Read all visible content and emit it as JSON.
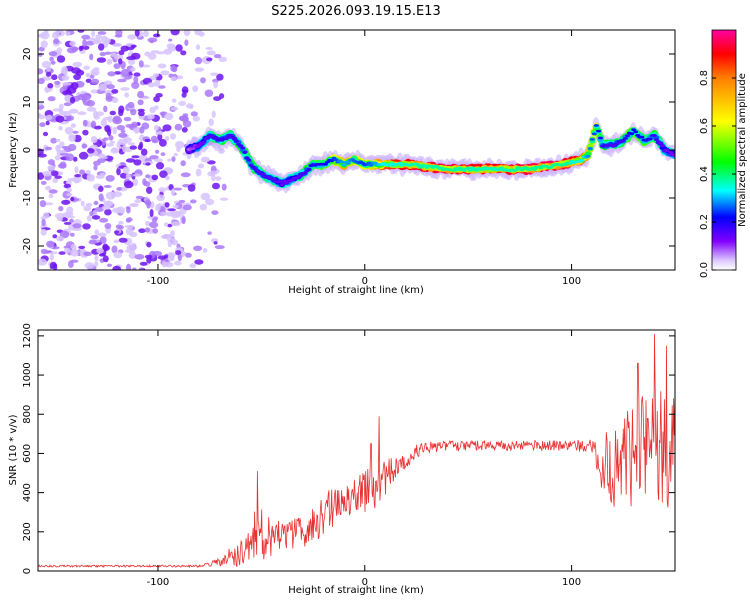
{
  "title": "S225.2026.093.19.15.E13",
  "chart_data": [
    {
      "type": "heatmap",
      "xlabel": "Height of straight line (km)",
      "ylabel": "Frequency (Hz)",
      "xlim": [
        -158,
        150
      ],
      "ylim": [
        -25,
        25
      ],
      "xticks": [
        -100,
        0,
        100
      ],
      "yticks": [
        -20,
        -10,
        0,
        10,
        20
      ],
      "ridge": {
        "x": [
          -85,
          -80,
          -75,
          -70,
          -65,
          -60,
          -55,
          -50,
          -45,
          -40,
          -35,
          -30,
          -25,
          -20,
          -15,
          -10,
          -5,
          0,
          10,
          20,
          40,
          60,
          80,
          95,
          105,
          108,
          112,
          115,
          120,
          125,
          130,
          135,
          140,
          145,
          150
        ],
        "frequency": [
          0,
          1,
          3,
          2,
          3,
          1,
          -3,
          -5,
          -6,
          -7,
          -6,
          -5,
          -3,
          -3,
          -2,
          -3,
          -2,
          -3,
          -3,
          -3,
          -4,
          -4,
          -4,
          -3,
          -2,
          -1,
          5,
          1,
          1,
          2,
          4,
          2,
          3,
          0,
          -1
        ],
        "amplitude": [
          0.2,
          0.3,
          0.4,
          0.45,
          0.4,
          0.45,
          0.45,
          0.4,
          0.4,
          0.35,
          0.35,
          0.4,
          0.5,
          0.5,
          0.6,
          0.75,
          0.65,
          0.6,
          0.85,
          0.9,
          0.95,
          0.9,
          0.95,
          0.95,
          0.85,
          0.7,
          0.6,
          0.45,
          0.4,
          0.45,
          0.55,
          0.5,
          0.45,
          0.35,
          0.3
        ]
      },
      "noise_region": [
        -158,
        -75
      ],
      "colorbar": {
        "label": "Normalized spectral amplitude",
        "range": [
          0,
          1
        ],
        "ticks": [
          "0.0",
          "0.2",
          "0.4",
          "0.6",
          "0.8"
        ],
        "tick_values": [
          0.0,
          0.2,
          0.4,
          0.6,
          0.8
        ]
      }
    },
    {
      "type": "line",
      "xlabel": "Height of straight line (km)",
      "ylabel": "SNR (10 * v/v)",
      "xlim": [
        -158,
        150
      ],
      "ylim": [
        0,
        1230
      ],
      "xticks": [
        -100,
        0,
        100
      ],
      "yticks": [
        0,
        200,
        400,
        600,
        800,
        1000,
        1200
      ],
      "series": [
        {
          "name": "SNR",
          "color": "#e83030",
          "envelope_x": [
            -158,
            -120,
            -80,
            -70,
            -60,
            -55,
            -50,
            -45,
            -40,
            -35,
            -30,
            -25,
            -20,
            -15,
            -10,
            -5,
            0,
            5,
            10,
            15,
            20,
            25,
            30,
            40,
            60,
            80,
            100,
            110,
            115,
            120,
            125,
            130,
            135,
            140,
            145,
            150
          ],
          "envelope_y": [
            25,
            25,
            25,
            45,
            100,
            170,
            200,
            160,
            170,
            190,
            200,
            230,
            290,
            330,
            320,
            380,
            400,
            440,
            480,
            520,
            560,
            610,
            630,
            640,
            640,
            640,
            640,
            640,
            550,
            520,
            560,
            600,
            620,
            620,
            620,
            620
          ],
          "noise_amplitude": [
            5,
            5,
            5,
            20,
            80,
            130,
            150,
            90,
            100,
            80,
            80,
            90,
            110,
            100,
            90,
            110,
            110,
            120,
            100,
            60,
            40,
            35,
            30,
            25,
            25,
            25,
            30,
            35,
            150,
            220,
            260,
            280,
            300,
            310,
            300,
            300
          ],
          "spikes": [
            {
              "x": -52,
              "y": 510
            },
            {
              "x": 7,
              "y": 790
            },
            {
              "x": 3,
              "y": 650
            },
            {
              "x": 132,
              "y": 1060
            },
            {
              "x": 140,
              "y": 1210
            },
            {
              "x": 146,
              "y": 1150
            }
          ]
        }
      ]
    }
  ]
}
